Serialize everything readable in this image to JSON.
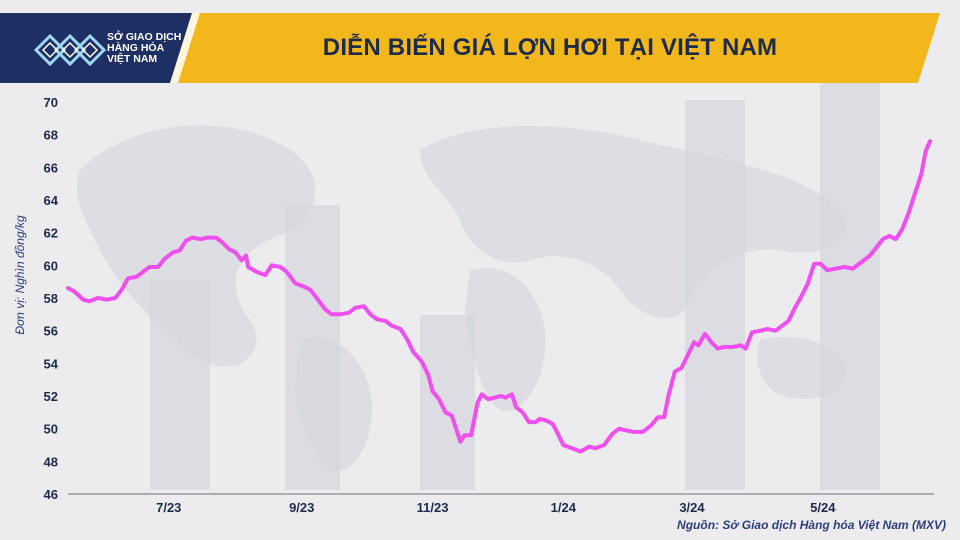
{
  "header": {
    "logo_lines": [
      "SỞ GIAO DỊCH",
      "HÀNG HÓA",
      "VIỆT NAM"
    ],
    "title": "DIỄN BIẾN GIÁ LỢN HƠI TẠI VIỆT NAM"
  },
  "source": "Nguồn: Sở Giao dịch Hàng hóa Việt Nam (MXV)",
  "colors": {
    "line": "#f04ff0",
    "header_yellow": "#f2b81b",
    "header_dark": "#1e2f63",
    "text_dark": "#1e2a4a"
  },
  "chart_data": {
    "type": "line",
    "title": "DIỄN BIẾN GIÁ LỢN HƠI TẠI VIỆT NAM",
    "xlabel": "",
    "ylabel": "Đơn vị: Nghìn đồng/kg",
    "ylim": [
      46,
      70
    ],
    "yticks": [
      46,
      48,
      50,
      52,
      54,
      56,
      58,
      60,
      62,
      64,
      66,
      68,
      70
    ],
    "x_tick_labels": [
      "7/23",
      "9/23",
      "11/23",
      "1/24",
      "3/24",
      "5/24"
    ],
    "x_tick_dates": [
      "2023-07-01",
      "2023-09-01",
      "2023-11-01",
      "2024-01-01",
      "2024-03-01",
      "2024-05-01"
    ],
    "xlim": [
      "2023-05-15",
      "2024-06-20"
    ],
    "grid": false,
    "series": [
      {
        "color": "#f04ff0",
        "points": [
          [
            "2023-05-15",
            58.6
          ],
          [
            "2023-05-18",
            58.4
          ],
          [
            "2023-05-22",
            57.9
          ],
          [
            "2023-05-25",
            57.8
          ],
          [
            "2023-05-29",
            58.0
          ],
          [
            "2023-06-02",
            57.9
          ],
          [
            "2023-06-06",
            58.0
          ],
          [
            "2023-06-09",
            58.5
          ],
          [
            "2023-06-12",
            59.2
          ],
          [
            "2023-06-16",
            59.3
          ],
          [
            "2023-06-19",
            59.6
          ],
          [
            "2023-06-22",
            59.9
          ],
          [
            "2023-06-26",
            59.9
          ],
          [
            "2023-06-29",
            60.4
          ],
          [
            "2023-07-03",
            60.8
          ],
          [
            "2023-07-06",
            60.9
          ],
          [
            "2023-07-09",
            61.5
          ],
          [
            "2023-07-12",
            61.7
          ],
          [
            "2023-07-16",
            61.6
          ],
          [
            "2023-07-19",
            61.7
          ],
          [
            "2023-07-23",
            61.7
          ],
          [
            "2023-07-26",
            61.4
          ],
          [
            "2023-07-29",
            61.0
          ],
          [
            "2023-08-01",
            60.8
          ],
          [
            "2023-08-04",
            60.3
          ],
          [
            "2023-08-06",
            60.6
          ],
          [
            "2023-08-07",
            59.9
          ],
          [
            "2023-08-11",
            59.6
          ],
          [
            "2023-08-15",
            59.4
          ],
          [
            "2023-08-18",
            60.0
          ],
          [
            "2023-08-22",
            59.9
          ],
          [
            "2023-08-25",
            59.6
          ],
          [
            "2023-08-29",
            58.9
          ],
          [
            "2023-09-02",
            58.7
          ],
          [
            "2023-09-05",
            58.5
          ],
          [
            "2023-09-08",
            58.0
          ],
          [
            "2023-09-12",
            57.3
          ],
          [
            "2023-09-15",
            57.0
          ],
          [
            "2023-09-19",
            57.0
          ],
          [
            "2023-09-23",
            57.1
          ],
          [
            "2023-09-26",
            57.4
          ],
          [
            "2023-09-30",
            57.5
          ],
          [
            "2023-10-03",
            57.0
          ],
          [
            "2023-10-06",
            56.7
          ],
          [
            "2023-10-10",
            56.6
          ],
          [
            "2023-10-13",
            56.3
          ],
          [
            "2023-10-17",
            56.1
          ],
          [
            "2023-10-20",
            55.5
          ],
          [
            "2023-10-23",
            54.7
          ],
          [
            "2023-10-27",
            54.1
          ],
          [
            "2023-10-30",
            53.3
          ],
          [
            "2023-11-01",
            52.3
          ],
          [
            "2023-11-04",
            51.8
          ],
          [
            "2023-11-07",
            51.0
          ],
          [
            "2023-11-10",
            50.8
          ],
          [
            "2023-11-14",
            49.2
          ],
          [
            "2023-11-16",
            49.6
          ],
          [
            "2023-11-19",
            49.6
          ],
          [
            "2023-11-22",
            51.6
          ],
          [
            "2023-11-24",
            52.1
          ],
          [
            "2023-11-27",
            51.8
          ],
          [
            "2023-11-30",
            51.9
          ],
          [
            "2023-12-03",
            52.0
          ],
          [
            "2023-12-05",
            51.9
          ],
          [
            "2023-12-08",
            52.1
          ],
          [
            "2023-12-10",
            51.3
          ],
          [
            "2023-12-13",
            51.0
          ],
          [
            "2023-12-16",
            50.4
          ],
          [
            "2023-12-19",
            50.4
          ],
          [
            "2023-12-21",
            50.6
          ],
          [
            "2023-12-24",
            50.5
          ],
          [
            "2023-12-27",
            50.3
          ],
          [
            "2023-12-29",
            49.8
          ],
          [
            "2024-01-01",
            49.0
          ],
          [
            "2024-01-05",
            48.8
          ],
          [
            "2024-01-09",
            48.6
          ],
          [
            "2024-01-13",
            48.9
          ],
          [
            "2024-01-16",
            48.8
          ],
          [
            "2024-01-20",
            49.0
          ],
          [
            "2024-01-24",
            49.7
          ],
          [
            "2024-01-27",
            50.0
          ],
          [
            "2024-01-30",
            49.9
          ],
          [
            "2024-02-03",
            49.8
          ],
          [
            "2024-02-07",
            49.8
          ],
          [
            "2024-02-11",
            50.2
          ],
          [
            "2024-02-14",
            50.7
          ],
          [
            "2024-02-17",
            50.7
          ],
          [
            "2024-02-19",
            52.0
          ],
          [
            "2024-02-22",
            53.5
          ],
          [
            "2024-02-25",
            53.7
          ],
          [
            "2024-02-28",
            54.5
          ],
          [
            "2024-03-02",
            55.3
          ],
          [
            "2024-03-04",
            55.1
          ],
          [
            "2024-03-07",
            55.8
          ],
          [
            "2024-03-10",
            55.3
          ],
          [
            "2024-03-13",
            54.9
          ],
          [
            "2024-03-16",
            55.0
          ],
          [
            "2024-03-20",
            55.0
          ],
          [
            "2024-03-24",
            55.1
          ],
          [
            "2024-03-26",
            54.9
          ],
          [
            "2024-03-29",
            55.9
          ],
          [
            "2024-04-02",
            56.0
          ],
          [
            "2024-04-05",
            56.1
          ],
          [
            "2024-04-09",
            56.0
          ],
          [
            "2024-04-12",
            56.3
          ],
          [
            "2024-04-15",
            56.6
          ],
          [
            "2024-04-18",
            57.4
          ],
          [
            "2024-04-21",
            58.1
          ],
          [
            "2024-04-24",
            58.9
          ],
          [
            "2024-04-27",
            60.1
          ],
          [
            "2024-04-30",
            60.1
          ],
          [
            "2024-05-03",
            59.7
          ],
          [
            "2024-05-07",
            59.8
          ],
          [
            "2024-05-11",
            59.9
          ],
          [
            "2024-05-15",
            59.8
          ],
          [
            "2024-05-19",
            60.2
          ],
          [
            "2024-05-23",
            60.6
          ],
          [
            "2024-05-26",
            61.1
          ],
          [
            "2024-05-29",
            61.6
          ],
          [
            "2024-06-01",
            61.8
          ],
          [
            "2024-06-04",
            61.6
          ],
          [
            "2024-06-07",
            62.2
          ],
          [
            "2024-06-10",
            63.2
          ],
          [
            "2024-06-12",
            64.0
          ],
          [
            "2024-06-14",
            64.8
          ],
          [
            "2024-06-16",
            65.6
          ],
          [
            "2024-06-18",
            67.0
          ],
          [
            "2024-06-20",
            67.6
          ]
        ]
      }
    ]
  }
}
